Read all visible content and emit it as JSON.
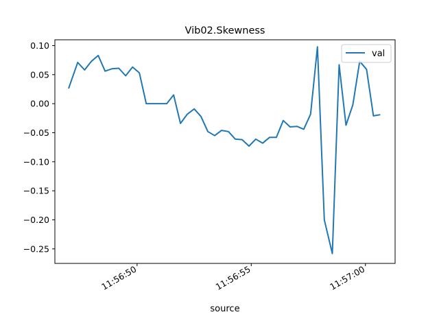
{
  "chart_data": {
    "type": "line",
    "title": "Vib02.Skewness",
    "xlabel": "source",
    "ylabel": "",
    "x_axis_kind": "time",
    "x_tick_labels": [
      "11:56:50",
      "11:56:55",
      "11:57:00"
    ],
    "x_tick_seconds": [
      50,
      55,
      60
    ],
    "x_range_seconds": [
      46.4,
      61.3
    ],
    "y_tick_labels": [
      "0.10",
      "0.05",
      "0.00",
      "−0.05",
      "−0.10",
      "−0.15",
      "−0.20",
      "−0.25"
    ],
    "y_tick_values": [
      0.1,
      0.05,
      0.0,
      -0.05,
      -0.1,
      -0.15,
      -0.2,
      -0.25
    ],
    "ylim": [
      -0.275,
      0.11
    ],
    "legend_placement": "top-right",
    "grid": false,
    "series": [
      {
        "name": "val",
        "color": "#1f77b4",
        "x": [
          47.0,
          47.15,
          47.4,
          47.7,
          48.0,
          48.3,
          48.6,
          48.9,
          49.2,
          49.5,
          49.8,
          50.1,
          50.4,
          50.7,
          51.0,
          51.3,
          51.6,
          51.9,
          52.2,
          52.5,
          52.8,
          53.1,
          53.4,
          53.7,
          54.0,
          54.3,
          54.6,
          54.9,
          55.2,
          55.5,
          55.8,
          56.1,
          56.4,
          56.7,
          57.0,
          57.3,
          57.6,
          57.9,
          58.2,
          58.55,
          58.85,
          59.15,
          59.45,
          59.75,
          60.05,
          60.35,
          60.65
        ],
        "y": [
          0.026,
          0.043,
          0.071,
          0.058,
          0.073,
          0.083,
          0.056,
          0.06,
          0.061,
          0.048,
          0.063,
          0.053,
          0.0,
          0.0,
          0.0,
          0.0,
          0.015,
          -0.034,
          -0.018,
          -0.009,
          -0.022,
          -0.048,
          -0.055,
          -0.046,
          -0.048,
          -0.061,
          -0.062,
          -0.073,
          -0.061,
          -0.068,
          -0.058,
          -0.058,
          -0.029,
          -0.04,
          -0.039,
          -0.044,
          -0.018,
          0.098,
          -0.2,
          -0.258,
          0.067,
          -0.037,
          -0.002,
          0.073,
          0.059,
          -0.021,
          -0.019
        ]
      }
    ]
  }
}
